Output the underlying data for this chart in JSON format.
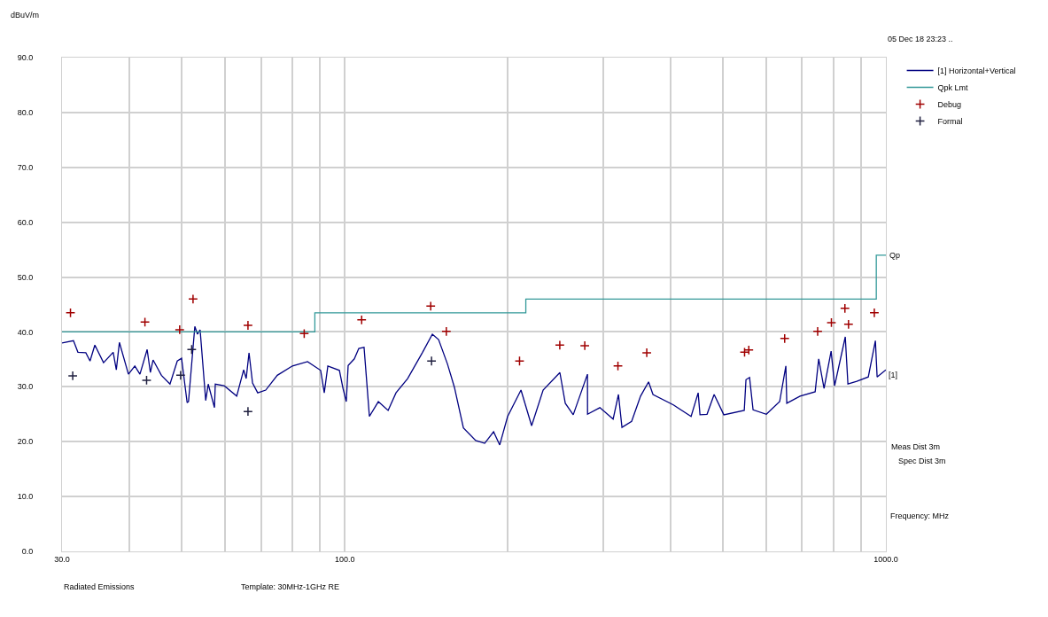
{
  "chart_data": {
    "type": "line",
    "ylabel": "dBuV/m",
    "log": "x",
    "grid": true,
    "legend": "top right",
    "xlim": [
      30,
      1000
    ],
    "xticks": [
      {
        "value": 30,
        "label": "30.0"
      },
      {
        "value": 40,
        "label": null
      },
      {
        "value": 50,
        "label": null
      },
      {
        "value": 60,
        "label": null
      },
      {
        "value": 70,
        "label": null
      },
      {
        "value": 80,
        "label": null
      },
      {
        "value": 90,
        "label": null
      },
      {
        "value": 100,
        "label": "100.0"
      },
      {
        "value": 200,
        "label": null
      },
      {
        "value": 300,
        "label": null
      },
      {
        "value": 400,
        "label": null
      },
      {
        "value": 500,
        "label": null
      },
      {
        "value": 600,
        "label": null
      },
      {
        "value": 700,
        "label": null
      },
      {
        "value": 800,
        "label": null
      },
      {
        "value": 900,
        "label": null
      },
      {
        "value": 1000,
        "label": "1000.0"
      }
    ],
    "ylim": [
      0,
      90
    ],
    "yticks": [
      {
        "value": 0,
        "label": "0.0"
      },
      {
        "value": 10,
        "label": "10.0"
      },
      {
        "value": 20,
        "label": "20.0"
      },
      {
        "value": 30,
        "label": "30.0"
      },
      {
        "value": 40,
        "label": "40.0"
      },
      {
        "value": 50,
        "label": "50.0"
      },
      {
        "value": 60,
        "label": "60.0"
      },
      {
        "value": 70,
        "label": "70.0"
      },
      {
        "value": 80,
        "label": "80.0"
      },
      {
        "value": 90,
        "label": "90.0"
      }
    ],
    "series": [
      {
        "name": "[1] Horizontal+Vertical",
        "color": "#000080",
        "marker": "none",
        "line_style": "solid",
        "x": [
          30.0,
          31.5,
          32.1,
          33.2,
          33.8,
          34.5,
          35.8,
          37.3,
          37.8,
          38.3,
          39.8,
          40.9,
          41.8,
          43.1,
          43.7,
          44.2,
          45.8,
          47.5,
          49.0,
          49.9,
          51.1,
          51.4,
          52.8,
          53.4,
          54.0,
          55.3,
          55.9,
          57.4,
          57.6,
          59.8,
          63.1,
          65.0,
          65.7,
          66.5,
          67.5,
          69.0,
          71.4,
          75.0,
          80.0,
          85.3,
          90.2,
          91.6,
          93.0,
          97.7,
          99.2,
          100.6,
          101.4,
          104.1,
          106.1,
          108.5,
          111.0,
          115.3,
          120.2,
          124.3,
          130.6,
          139.2,
          145.1,
          149.0,
          154.7,
          159.4,
          165.6,
          174.5,
          181.3,
          188.3,
          193.3,
          199.9,
          211.6,
          221.4,
          232.5,
          249.7,
          255.5,
          264.3,
          280.8,
          280.9,
          296.0,
          313.2,
          320.4,
          325.2,
          338.9,
          352.0,
          364.2,
          371.1,
          404.8,
          436.5,
          449.8,
          453.3,
          467.1,
          481.4,
          501.7,
          547.3,
          551.3,
          559.8,
          568.2,
          601.3,
          636.3,
          653.3,
          655.9,
          694.0,
          740.1,
          751.3,
          768.6,
          792.1,
          804.0,
          841.3,
          850.8,
          883.5,
          927.9,
          956.3,
          963.4,
          1000
        ],
        "values": [
          38.0,
          38.4,
          36.3,
          36.2,
          34.7,
          37.6,
          34.4,
          36.3,
          33.1,
          38.1,
          32.3,
          33.8,
          32.3,
          36.8,
          32.6,
          34.9,
          32.1,
          30.5,
          34.7,
          35.2,
          27.1,
          27.3,
          41.0,
          39.6,
          40.4,
          27.5,
          30.5,
          26.2,
          30.5,
          30.2,
          28.3,
          33.1,
          31.5,
          36.2,
          30.7,
          28.9,
          29.4,
          32.1,
          33.8,
          34.6,
          33.0,
          28.9,
          33.8,
          33.0,
          29.7,
          27.3,
          33.9,
          35.1,
          37.0,
          37.2,
          24.6,
          27.3,
          25.7,
          28.9,
          31.5,
          36.3,
          39.6,
          38.6,
          34.2,
          29.9,
          22.5,
          20.2,
          19.7,
          21.8,
          19.4,
          24.6,
          29.4,
          22.9,
          29.4,
          32.6,
          27.0,
          24.9,
          32.3,
          25.0,
          26.2,
          24.1,
          28.6,
          22.6,
          23.7,
          28.3,
          30.9,
          28.6,
          26.7,
          24.6,
          28.9,
          24.9,
          25.0,
          28.6,
          24.9,
          25.7,
          31.3,
          31.7,
          25.8,
          25.0,
          27.3,
          33.8,
          27.0,
          28.3,
          29.1,
          35.1,
          29.7,
          36.5,
          30.2,
          39.1,
          30.5,
          31.0,
          31.8,
          38.4,
          31.8,
          33.1
        ]
      },
      {
        "name": "Qpk Lmt",
        "type": "step",
        "color": "#339999",
        "marker": "none",
        "line_style": "solid",
        "x": [
          30,
          88,
          216,
          960,
          1000
        ],
        "values": [
          40,
          43.5,
          46,
          54,
          54
        ]
      },
      {
        "name": "Debug",
        "type": "scatter",
        "color": "#a00000",
        "marker": "cross",
        "x": [
          31.1,
          42.7,
          49.5,
          52.4,
          66.2,
          84.1,
          107.4,
          144.1,
          154.0,
          210.3,
          249.6,
          277.6,
          319.7,
          361.4,
          548,
          558,
          650,
          748,
          793,
          840,
          853,
          952
        ],
        "values": [
          43.5,
          41.8,
          40.4,
          46.0,
          41.2,
          39.7,
          42.2,
          44.7,
          40.1,
          34.7,
          37.6,
          37.5,
          33.8,
          36.2,
          36.3,
          36.7,
          38.8,
          40.1,
          41.7,
          44.3,
          41.4,
          43.5
        ]
      },
      {
        "name": "Formal",
        "type": "scatter",
        "color": "#202040",
        "marker": "cross",
        "x": [
          31.4,
          43.0,
          49.7,
          52.1,
          66.2,
          144.6
        ],
        "values": [
          32.0,
          31.2,
          32.1,
          36.8,
          25.5,
          34.7
        ]
      }
    ],
    "annotations": [
      {
        "text": "Qp",
        "x": 1000,
        "y": 54
      },
      "[1]",
      "Meas Dist 3m",
      "Spec Dist 3m",
      "Frequency: MHz",
      "Radiated Emissions",
      "Template: 30MHz-1GHz RE",
      "05 Dec 18 23:23 .."
    ]
  }
}
